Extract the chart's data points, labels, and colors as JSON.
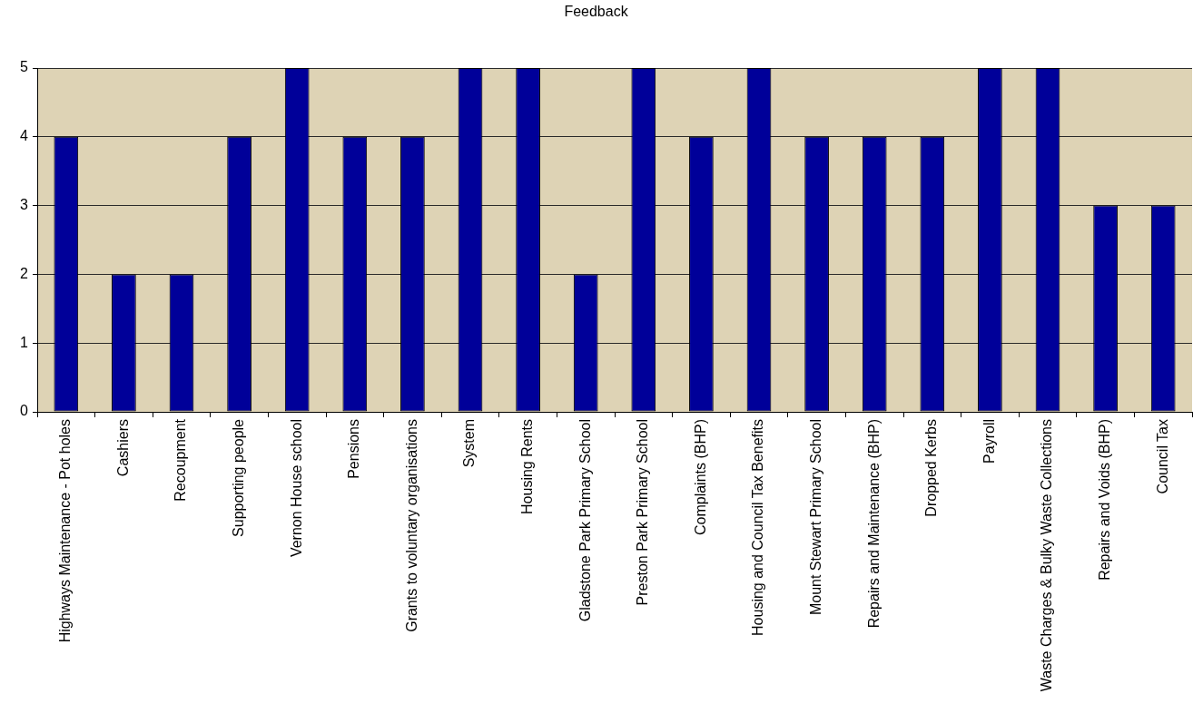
{
  "chart_data": {
    "type": "bar",
    "title": "Feedback",
    "categories": [
      "Highways Maintenance - Pot holes",
      "Cashiers",
      "Recoupment",
      "Supporting people",
      "Vernon House school",
      "Pensions",
      "Grants to voluntary organisations",
      "System",
      "Housing Rents",
      "Gladstone Park Primary School",
      "Preston Park Primary School",
      "Complaints (BHP)",
      "Housing and Council Tax Benefits",
      "Mount Stewart Primary School",
      "Repairs and Maintenance (BHP)",
      "Dropped Kerbs",
      "Payroll",
      "Waste Charges & Bulky Waste Collections",
      "Repairs and Voids (BHP)",
      "Council Tax"
    ],
    "values": [
      4,
      2,
      2,
      4,
      5,
      4,
      4,
      5,
      5,
      2,
      5,
      4,
      5,
      4,
      4,
      4,
      5,
      5,
      3,
      3
    ],
    "color": "#000099",
    "ylim": [
      0,
      5
    ],
    "yticks": [
      0,
      1,
      2,
      3,
      4,
      5
    ],
    "grid": "y"
  }
}
